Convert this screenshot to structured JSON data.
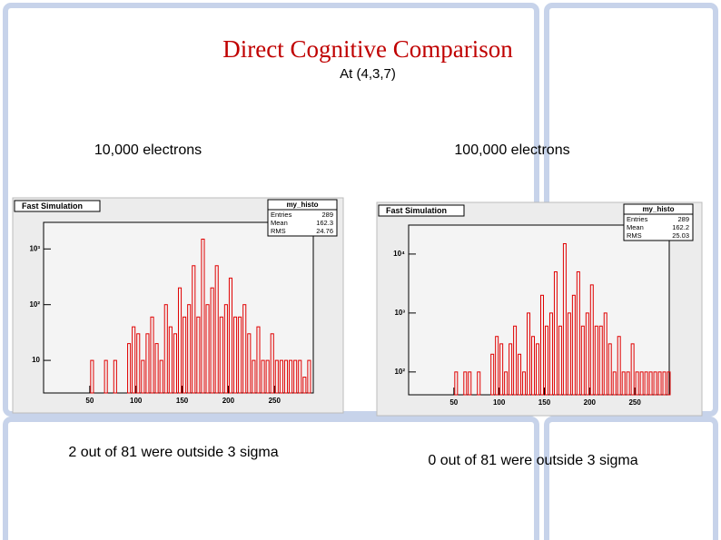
{
  "title": "Direct Cognitive Comparison",
  "subtitle": "At (4,3,7)",
  "panels": [
    {
      "heading": "10,000 electrons",
      "caption": "2 out of 81 were outside 3 sigma"
    },
    {
      "heading": "100,000 electrons",
      "caption": "0 out of 81 were outside 3 sigma"
    }
  ],
  "chart_data": [
    {
      "type": "histogram",
      "title": "Fast Simulation",
      "color": "#e00000",
      "log_y": true,
      "stats_name": "my_histo",
      "stats_labels": [
        "Entries",
        "Mean",
        "RMS"
      ],
      "stats_values": [
        289,
        162.3,
        24.76
      ],
      "bins": [
        45,
        50,
        55,
        60,
        65,
        70,
        75,
        80,
        85,
        90,
        95,
        100,
        105,
        110,
        115,
        120,
        125,
        130,
        135,
        140,
        145,
        150,
        155,
        160,
        165,
        170,
        175,
        180,
        185,
        190,
        195,
        200,
        205,
        210,
        215,
        220,
        225,
        230,
        235,
        240,
        245,
        250,
        255,
        260,
        265,
        270,
        275,
        280,
        285,
        290
      ],
      "values": [
        0,
        10,
        0,
        0,
        10,
        0,
        10,
        0,
        0,
        20,
        40,
        30,
        10,
        30,
        60,
        20,
        10,
        100,
        40,
        30,
        200,
        60,
        100,
        500,
        60,
        1500,
        100,
        200,
        500,
        60,
        100,
        300,
        60,
        60,
        100,
        30,
        10,
        40,
        10,
        10,
        30,
        10,
        10,
        10,
        10,
        10,
        10,
        5,
        10
      ],
      "xlim": [
        0,
        292
      ],
      "xticks": [
        50,
        100,
        150,
        200,
        250
      ],
      "ylim": [
        2.6,
        3000
      ],
      "yticks": [
        10,
        {
          "value": 100,
          "label": "10²"
        },
        {
          "value": 1000,
          "label": "10³"
        }
      ]
    },
    {
      "type": "histogram",
      "title": "Fast Simulation",
      "color": "#e00000",
      "log_y": true,
      "stats_name": "my_histo",
      "stats_labels": [
        "Entries",
        "Mean",
        "RMS"
      ],
      "stats_values": [
        289,
        162.2,
        25.03
      ],
      "bins": [
        45,
        50,
        55,
        60,
        65,
        70,
        75,
        80,
        85,
        90,
        95,
        100,
        105,
        110,
        115,
        120,
        125,
        130,
        135,
        140,
        145,
        150,
        155,
        160,
        165,
        170,
        175,
        180,
        185,
        190,
        195,
        200,
        205,
        210,
        215,
        220,
        225,
        230,
        235,
        240,
        245,
        250,
        255,
        260,
        265,
        270,
        275,
        280,
        285,
        290
      ],
      "values": [
        0,
        100,
        0,
        100,
        100,
        0,
        100,
        0,
        0,
        200,
        400,
        300,
        100,
        300,
        600,
        200,
        100,
        1000,
        400,
        300,
        2000,
        600,
        1000,
        5000,
        600,
        15000,
        1000,
        2000,
        5000,
        600,
        1000,
        3000,
        600,
        600,
        1000,
        300,
        100,
        400,
        100,
        100,
        300,
        100,
        100,
        100,
        100,
        100,
        100,
        100,
        100
      ],
      "xlim": [
        0,
        288
      ],
      "xticks": [
        50,
        100,
        150,
        200,
        250
      ],
      "ylim": [
        41,
        31000
      ],
      "yticks": [
        {
          "value": 100,
          "label": "10²"
        },
        {
          "value": 1000,
          "label": "10³"
        },
        {
          "value": 10000,
          "label": "10⁴"
        }
      ]
    }
  ]
}
